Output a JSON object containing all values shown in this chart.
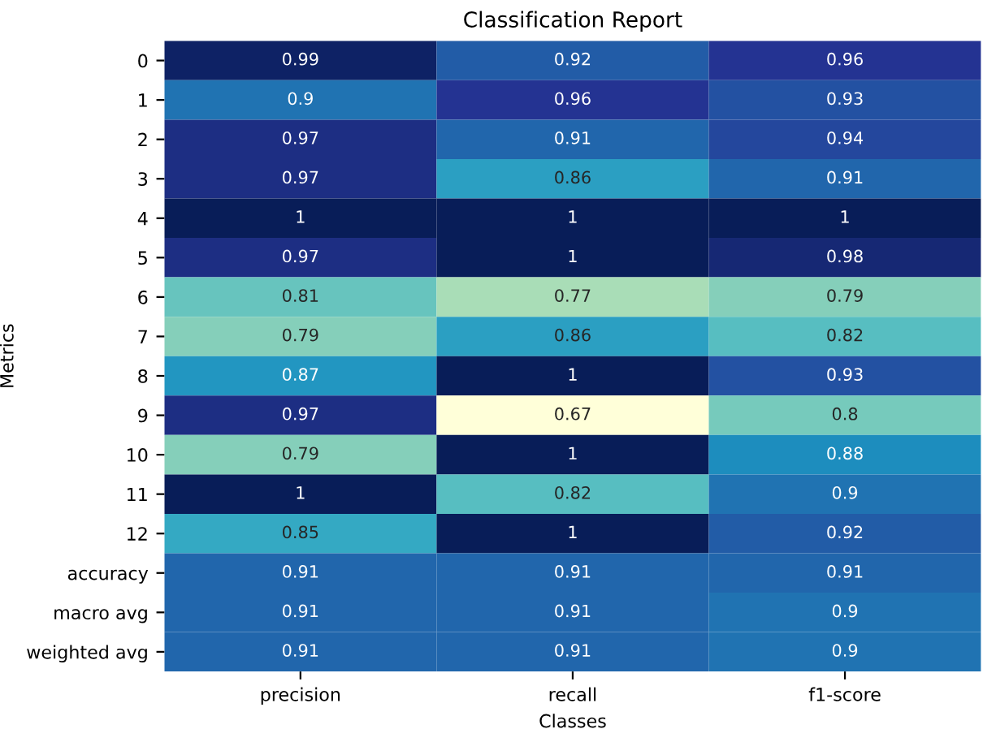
{
  "chart_data": {
    "type": "heatmap",
    "title": "Classification Report",
    "xlabel": "Classes",
    "ylabel": "Metrics",
    "categories": [
      "precision",
      "recall",
      "f1-score"
    ],
    "y_categories": [
      "0",
      "1",
      "2",
      "3",
      "4",
      "5",
      "6",
      "7",
      "8",
      "9",
      "10",
      "11",
      "12",
      "accuracy",
      "macro avg",
      "weighted avg"
    ],
    "cells": [
      [
        0.99,
        0.92,
        0.96
      ],
      [
        0.9,
        0.96,
        0.93
      ],
      [
        0.97,
        0.91,
        0.94
      ],
      [
        0.97,
        0.86,
        0.91
      ],
      [
        1,
        1,
        1
      ],
      [
        0.97,
        1,
        0.98
      ],
      [
        0.81,
        0.77,
        0.79
      ],
      [
        0.79,
        0.86,
        0.82
      ],
      [
        0.87,
        1,
        0.93
      ],
      [
        0.97,
        0.67,
        0.8
      ],
      [
        0.79,
        1,
        0.88
      ],
      [
        1,
        0.82,
        0.9
      ],
      [
        0.85,
        1,
        0.92
      ],
      [
        0.91,
        0.91,
        0.91
      ],
      [
        0.91,
        0.91,
        0.9
      ],
      [
        0.91,
        0.91,
        0.9
      ]
    ],
    "data_labels": true
  }
}
